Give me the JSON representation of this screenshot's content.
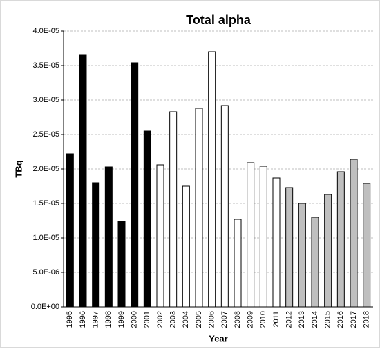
{
  "chart_data": {
    "type": "bar",
    "title": "Total alpha",
    "x_label": "Year",
    "y_label": "TBq",
    "categories": [
      "1995",
      "1996",
      "1997",
      "1998",
      "1999",
      "2000",
      "2001",
      "2002",
      "2003",
      "2004",
      "2005",
      "2006",
      "2007",
      "2008",
      "2009",
      "2010",
      "2011",
      "2012",
      "2013",
      "2014",
      "2015",
      "2016",
      "2017",
      "2018"
    ],
    "values": [
      2.22e-05,
      3.65e-05,
      1.8e-05,
      2.03e-05,
      1.24e-05,
      3.54e-05,
      2.55e-05,
      2.06e-05,
      2.83e-05,
      1.75e-05,
      2.88e-05,
      3.7e-05,
      2.92e-05,
      1.27e-05,
      2.09e-05,
      2.04e-05,
      1.87e-05,
      1.73e-05,
      1.5e-05,
      1.3e-05,
      1.63e-05,
      1.96e-05,
      2.14e-05,
      1.79e-05
    ],
    "colors": [
      "#000000",
      "#000000",
      "#000000",
      "#000000",
      "#000000",
      "#000000",
      "#000000",
      "#ffffff",
      "#ffffff",
      "#ffffff",
      "#ffffff",
      "#ffffff",
      "#ffffff",
      "#ffffff",
      "#ffffff",
      "#ffffff",
      "#ffffff",
      "#bfbfbf",
      "#bfbfbf",
      "#bfbfbf",
      "#bfbfbf",
      "#bfbfbf",
      "#bfbfbf",
      "#bfbfbf"
    ],
    "ylim": [
      0,
      4e-05
    ],
    "yticks": [
      {
        "value": 0,
        "label": "0.0E+00"
      },
      {
        "value": 5e-06,
        "label": "5.0E-06"
      },
      {
        "value": 1e-05,
        "label": "1.0E-05"
      },
      {
        "value": 1.5e-05,
        "label": "1.5E-05"
      },
      {
        "value": 2e-05,
        "label": "2.0E-05"
      },
      {
        "value": 2.5e-05,
        "label": "2.5E-05"
      },
      {
        "value": 3e-05,
        "label": "3.0E-05"
      },
      {
        "value": 3.5e-05,
        "label": "3.5E-05"
      },
      {
        "value": 4e-05,
        "label": "4.0E-05"
      }
    ],
    "grid": true
  }
}
